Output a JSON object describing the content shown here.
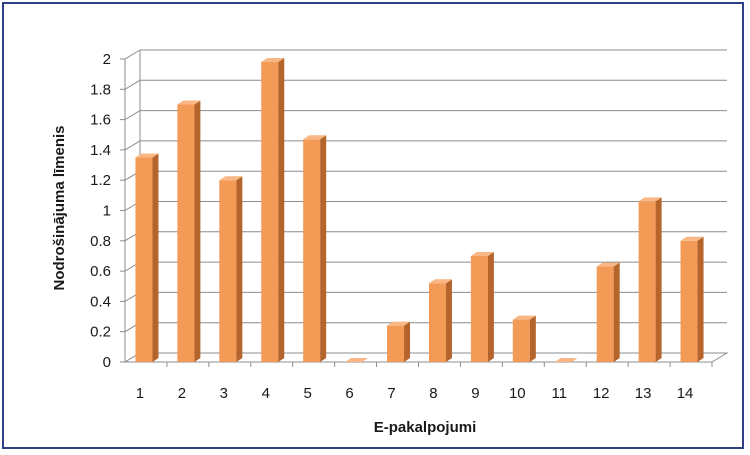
{
  "chart_data": {
    "type": "bar",
    "categories": [
      "1",
      "2",
      "3",
      "4",
      "5",
      "6",
      "7",
      "8",
      "9",
      "10",
      "11",
      "12",
      "13",
      "14"
    ],
    "values": [
      1.35,
      1.7,
      1.2,
      1.98,
      1.47,
      0,
      0.24,
      0.52,
      0.7,
      0.28,
      0,
      0.63,
      1.06,
      0.8
    ],
    "xlabel": "E-pakalpojumi",
    "ylabel": "Nodrošinājuma līmenis",
    "ylim": [
      0,
      2
    ],
    "yticks": [
      "0",
      "0.2",
      "0.4",
      "0.6",
      "0.8",
      "1",
      "1.2",
      "1.4",
      "1.6",
      "1.8",
      "2"
    ],
    "grid": true,
    "style": "3d-column",
    "colors": {
      "bar_front": "#f39a57",
      "bar_side": "#b5642b",
      "bar_top": "#f8b784",
      "grid": "#8c8c8c",
      "border": "#2e3f84"
    }
  }
}
